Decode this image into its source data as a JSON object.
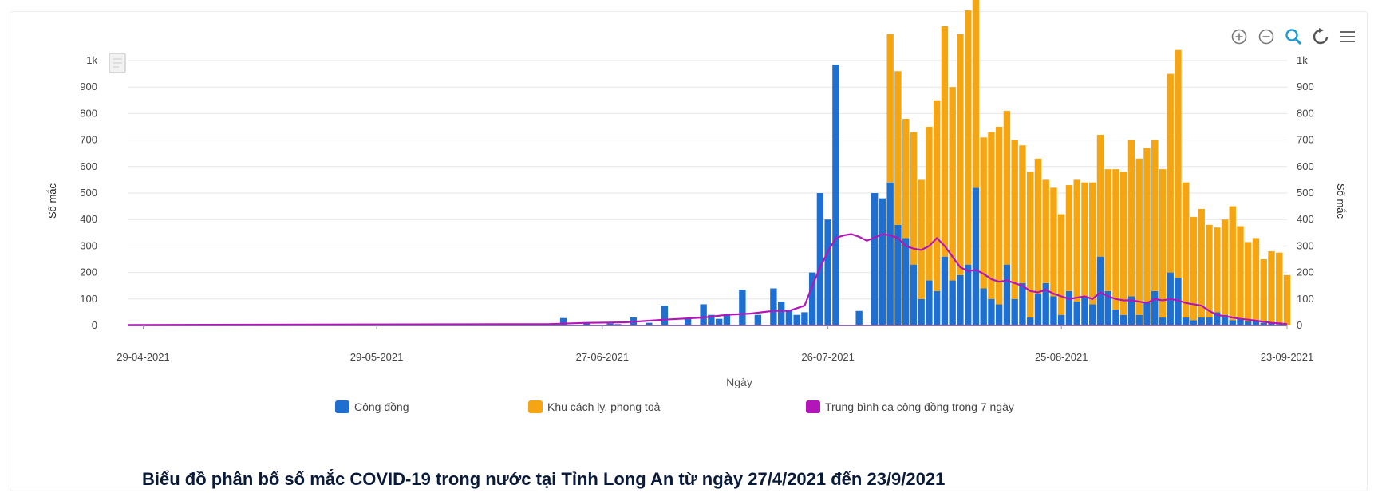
{
  "caption": "Biểu đồ phân bố số mắc COVID-19 trong nước tại Tỉnh Long An từ ngày 27/4/2021 đến 23/9/2021",
  "toolbar": [
    "zoom-in-icon",
    "zoom-out-icon",
    "magnify-icon",
    "reset-icon",
    "menu-icon"
  ],
  "colors": {
    "community": "#1f6fd1",
    "quarantine": "#f5a511",
    "average": "#b316b8",
    "grid": "#e6e6e6",
    "toolbar_active": "#1a9bd7",
    "toolbar_idle": "#777777"
  },
  "chart_data": {
    "type": "bar",
    "title": "",
    "xlabel": "Ngày",
    "ylabel": "Số mắc",
    "y2label": "Số mắc",
    "ylim": [
      0,
      1000
    ],
    "y_ticks": [
      "0",
      "100",
      "200",
      "300",
      "400",
      "500",
      "600",
      "700",
      "800",
      "900",
      "1k"
    ],
    "x_ticks": [
      "29-04-2021",
      "29-05-2021",
      "27-06-2021",
      "26-07-2021",
      "25-08-2021",
      "23-09-2021"
    ],
    "x_start": "2021-04-27",
    "legend_position": "bottom",
    "grid": true,
    "legend": [
      "Cộng đồng",
      "Khu cách ly, phong toả",
      "Trung bình ca cộng đồng trong 7 ngày"
    ],
    "series": [
      {
        "name": "Cộng đồng",
        "kind": "bar",
        "points": [
          [
            "2021-06-22",
            28
          ],
          [
            "2021-06-25",
            12
          ],
          [
            "2021-06-28",
            8
          ],
          [
            "2021-06-29",
            5
          ],
          [
            "2021-07-01",
            30
          ],
          [
            "2021-07-03",
            10
          ],
          [
            "2021-07-05",
            75
          ],
          [
            "2021-07-08",
            25
          ],
          [
            "2021-07-10",
            80
          ],
          [
            "2021-07-11",
            40
          ],
          [
            "2021-07-12",
            25
          ],
          [
            "2021-07-13",
            45
          ],
          [
            "2021-07-15",
            135
          ],
          [
            "2021-07-17",
            40
          ],
          [
            "2021-07-19",
            140
          ],
          [
            "2021-07-20",
            90
          ],
          [
            "2021-07-21",
            60
          ],
          [
            "2021-07-22",
            40
          ],
          [
            "2021-07-23",
            50
          ],
          [
            "2021-07-24",
            200
          ],
          [
            "2021-07-25",
            500
          ],
          [
            "2021-07-26",
            400
          ],
          [
            "2021-07-27",
            985
          ],
          [
            "2021-07-30",
            55
          ],
          [
            "2021-08-01",
            500
          ],
          [
            "2021-08-02",
            480
          ],
          [
            "2021-08-03",
            540
          ],
          [
            "2021-08-04",
            380
          ],
          [
            "2021-08-05",
            330
          ],
          [
            "2021-08-06",
            230
          ],
          [
            "2021-08-07",
            100
          ],
          [
            "2021-08-08",
            170
          ],
          [
            "2021-08-09",
            130
          ],
          [
            "2021-08-10",
            260
          ],
          [
            "2021-08-11",
            170
          ],
          [
            "2021-08-12",
            190
          ],
          [
            "2021-08-13",
            230
          ],
          [
            "2021-08-14",
            520
          ],
          [
            "2021-08-15",
            140
          ],
          [
            "2021-08-16",
            100
          ],
          [
            "2021-08-17",
            80
          ],
          [
            "2021-08-18",
            230
          ],
          [
            "2021-08-19",
            100
          ],
          [
            "2021-08-20",
            160
          ],
          [
            "2021-08-21",
            30
          ],
          [
            "2021-08-22",
            120
          ],
          [
            "2021-08-23",
            160
          ],
          [
            "2021-08-24",
            110
          ],
          [
            "2021-08-25",
            40
          ],
          [
            "2021-08-26",
            130
          ],
          [
            "2021-08-27",
            90
          ],
          [
            "2021-08-28",
            110
          ],
          [
            "2021-08-29",
            80
          ],
          [
            "2021-08-30",
            260
          ],
          [
            "2021-08-31",
            130
          ],
          [
            "2021-09-01",
            60
          ],
          [
            "2021-09-02",
            40
          ],
          [
            "2021-09-03",
            110
          ],
          [
            "2021-09-04",
            40
          ],
          [
            "2021-09-05",
            90
          ],
          [
            "2021-09-06",
            130
          ],
          [
            "2021-09-07",
            30
          ],
          [
            "2021-09-08",
            200
          ],
          [
            "2021-09-09",
            180
          ],
          [
            "2021-09-10",
            30
          ],
          [
            "2021-09-11",
            20
          ],
          [
            "2021-09-12",
            30
          ],
          [
            "2021-09-13",
            30
          ],
          [
            "2021-09-14",
            50
          ],
          [
            "2021-09-15",
            40
          ],
          [
            "2021-09-16",
            20
          ],
          [
            "2021-09-17",
            25
          ],
          [
            "2021-09-18",
            15
          ],
          [
            "2021-09-19",
            20
          ],
          [
            "2021-09-20",
            10
          ],
          [
            "2021-09-21",
            10
          ],
          [
            "2021-09-22",
            5
          ]
        ]
      },
      {
        "name": "Khu cách ly, phong toả",
        "kind": "bar",
        "points": [
          [
            "2021-08-03",
            560
          ],
          [
            "2021-08-04",
            580
          ],
          [
            "2021-08-05",
            450
          ],
          [
            "2021-08-06",
            500
          ],
          [
            "2021-08-07",
            450
          ],
          [
            "2021-08-08",
            580
          ],
          [
            "2021-08-09",
            720
          ],
          [
            "2021-08-10",
            870
          ],
          [
            "2021-08-11",
            730
          ],
          [
            "2021-08-12",
            910
          ],
          [
            "2021-08-13",
            960
          ],
          [
            "2021-08-14",
            740
          ],
          [
            "2021-08-15",
            570
          ],
          [
            "2021-08-16",
            630
          ],
          [
            "2021-08-17",
            670
          ],
          [
            "2021-08-18",
            580
          ],
          [
            "2021-08-19",
            600
          ],
          [
            "2021-08-20",
            520
          ],
          [
            "2021-08-21",
            550
          ],
          [
            "2021-08-22",
            510
          ],
          [
            "2021-08-23",
            390
          ],
          [
            "2021-08-24",
            410
          ],
          [
            "2021-08-25",
            380
          ],
          [
            "2021-08-26",
            400
          ],
          [
            "2021-08-27",
            460
          ],
          [
            "2021-08-28",
            430
          ],
          [
            "2021-08-29",
            460
          ],
          [
            "2021-08-30",
            460
          ],
          [
            "2021-08-31",
            460
          ],
          [
            "2021-09-01",
            530
          ],
          [
            "2021-09-02",
            540
          ],
          [
            "2021-09-03",
            590
          ],
          [
            "2021-09-04",
            590
          ],
          [
            "2021-09-05",
            580
          ],
          [
            "2021-09-06",
            570
          ],
          [
            "2021-09-07",
            560
          ],
          [
            "2021-09-08",
            750
          ],
          [
            "2021-09-09",
            860
          ],
          [
            "2021-09-10",
            510
          ],
          [
            "2021-09-11",
            390
          ],
          [
            "2021-09-12",
            410
          ],
          [
            "2021-09-13",
            350
          ],
          [
            "2021-09-14",
            320
          ],
          [
            "2021-09-15",
            360
          ],
          [
            "2021-09-16",
            430
          ],
          [
            "2021-09-17",
            350
          ],
          [
            "2021-09-18",
            300
          ],
          [
            "2021-09-19",
            310
          ],
          [
            "2021-09-20",
            240
          ],
          [
            "2021-09-21",
            270
          ],
          [
            "2021-09-22",
            270
          ],
          [
            "2021-09-23",
            190
          ]
        ]
      },
      {
        "name": "Trung bình ca cộng đồng trong 7 ngày",
        "kind": "line",
        "points": [
          [
            "2021-04-27",
            2
          ],
          [
            "2021-06-20",
            5
          ],
          [
            "2021-06-25",
            10
          ],
          [
            "2021-06-30",
            12
          ],
          [
            "2021-07-05",
            22
          ],
          [
            "2021-07-10",
            30
          ],
          [
            "2021-07-13",
            40
          ],
          [
            "2021-07-16",
            45
          ],
          [
            "2021-07-19",
            55
          ],
          [
            "2021-07-21",
            55
          ],
          [
            "2021-07-23",
            75
          ],
          [
            "2021-07-24",
            150
          ],
          [
            "2021-07-25",
            220
          ],
          [
            "2021-07-26",
            280
          ],
          [
            "2021-07-27",
            330
          ],
          [
            "2021-07-28",
            340
          ],
          [
            "2021-07-29",
            345
          ],
          [
            "2021-07-30",
            335
          ],
          [
            "2021-07-31",
            320
          ],
          [
            "2021-08-02",
            345
          ],
          [
            "2021-08-03",
            340
          ],
          [
            "2021-08-04",
            330
          ],
          [
            "2021-08-05",
            300
          ],
          [
            "2021-08-06",
            290
          ],
          [
            "2021-08-07",
            285
          ],
          [
            "2021-08-08",
            300
          ],
          [
            "2021-08-09",
            330
          ],
          [
            "2021-08-10",
            300
          ],
          [
            "2021-08-11",
            260
          ],
          [
            "2021-08-12",
            220
          ],
          [
            "2021-08-13",
            205
          ],
          [
            "2021-08-14",
            210
          ],
          [
            "2021-08-15",
            195
          ],
          [
            "2021-08-16",
            175
          ],
          [
            "2021-08-17",
            165
          ],
          [
            "2021-08-18",
            170
          ],
          [
            "2021-08-19",
            160
          ],
          [
            "2021-08-20",
            150
          ],
          [
            "2021-08-21",
            130
          ],
          [
            "2021-08-22",
            125
          ],
          [
            "2021-08-23",
            135
          ],
          [
            "2021-08-24",
            120
          ],
          [
            "2021-08-25",
            110
          ],
          [
            "2021-08-26",
            100
          ],
          [
            "2021-08-27",
            105
          ],
          [
            "2021-08-28",
            110
          ],
          [
            "2021-08-29",
            100
          ],
          [
            "2021-08-30",
            125
          ],
          [
            "2021-08-31",
            110
          ],
          [
            "2021-09-01",
            100
          ],
          [
            "2021-09-02",
            95
          ],
          [
            "2021-09-03",
            95
          ],
          [
            "2021-09-04",
            90
          ],
          [
            "2021-09-05",
            85
          ],
          [
            "2021-09-06",
            100
          ],
          [
            "2021-09-07",
            95
          ],
          [
            "2021-09-08",
            100
          ],
          [
            "2021-09-09",
            95
          ],
          [
            "2021-09-10",
            85
          ],
          [
            "2021-09-11",
            80
          ],
          [
            "2021-09-12",
            75
          ],
          [
            "2021-09-13",
            55
          ],
          [
            "2021-09-14",
            40
          ],
          [
            "2021-09-15",
            35
          ],
          [
            "2021-09-16",
            30
          ],
          [
            "2021-09-17",
            25
          ],
          [
            "2021-09-18",
            22
          ],
          [
            "2021-09-19",
            18
          ],
          [
            "2021-09-20",
            14
          ],
          [
            "2021-09-21",
            10
          ],
          [
            "2021-09-22",
            8
          ],
          [
            "2021-09-23",
            5
          ]
        ]
      }
    ]
  }
}
